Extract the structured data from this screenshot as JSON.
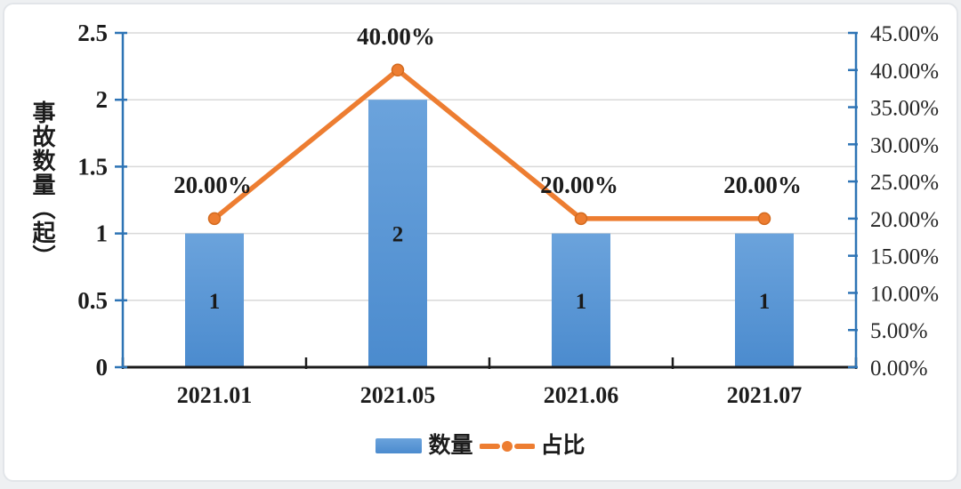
{
  "page": {
    "background": "#eef0f2",
    "card_background": "#ffffff"
  },
  "chart_data": {
    "type": "bar+line",
    "categories": [
      "2021.01",
      "2021.05",
      "2021.06",
      "2021.07"
    ],
    "series": [
      {
        "name": "数量",
        "type": "bar",
        "axis": "left",
        "values": [
          1,
          2,
          1,
          1
        ],
        "value_labels": [
          "1",
          "2",
          "1",
          "1"
        ],
        "color_top": "#6ba3dc",
        "color_bottom": "#4b8bce"
      },
      {
        "name": "占比",
        "type": "line",
        "axis": "right",
        "values": [
          20,
          40,
          20,
          20
        ],
        "point_labels": [
          "20.00%",
          "40.00%",
          "20.00%",
          "20.00%"
        ],
        "color": "#ed7d31",
        "marker_stroke": "#d26a1f"
      }
    ],
    "left_axis": {
      "title": "事故数量（起）",
      "min": 0,
      "max": 2.5,
      "step": 0.5,
      "tick_labels": [
        "0",
        "0.5",
        "1",
        "1.5",
        "2",
        "2.5"
      ],
      "color": "#2e74b5"
    },
    "right_axis": {
      "min": 0,
      "max": 45,
      "step": 5,
      "tick_labels": [
        "0.00%",
        "5.00%",
        "10.00%",
        "15.00%",
        "20.00%",
        "25.00%",
        "30.00%",
        "35.00%",
        "40.00%",
        "45.00%"
      ],
      "color": "#2e74b5"
    },
    "x_axis": {
      "color": "#1c1c1c"
    },
    "grid": {
      "on": true,
      "color": "#d9d9d9"
    },
    "legend": {
      "position": "bottom-center",
      "items": [
        {
          "label": "数量",
          "swatch": "bar"
        },
        {
          "label": "占比",
          "swatch": "line-with-marker"
        }
      ]
    },
    "text_color": "#1c1c1c",
    "bar_value_label_color": "#1a1a1a"
  }
}
